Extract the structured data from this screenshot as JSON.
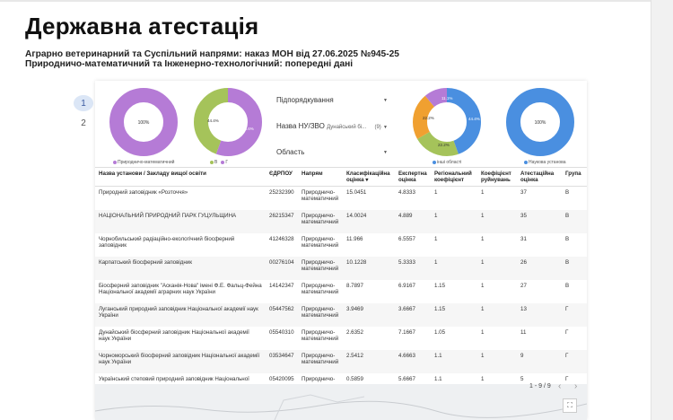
{
  "title": "Державна атестація",
  "subtitle1": "Аграрно ветеринарний та Суспільний напрями: наказ МОН від 27.06.2025 №945-25",
  "subtitle2": "Природничо-математичний та Інженерно-технологічний: попередні дані",
  "pages": [
    "1",
    "2"
  ],
  "charts": [
    {
      "labels": [
        "100%"
      ],
      "legend": [
        "Природничо-математичний"
      ],
      "colors": [
        "#b57bd6"
      ]
    },
    {
      "labels": [
        "44.4%",
        "55.6%"
      ],
      "legend": [
        "В",
        "Г"
      ],
      "colors": [
        "#a5c35a",
        "#b57bd6"
      ]
    },
    {
      "labels": [
        "11.1%",
        "22.2%",
        "22.2%",
        "44.4%"
      ],
      "legend": [
        "інші області"
      ],
      "colors": [
        "#b57bd6",
        "#f0a030",
        "#a5c35a",
        "#4a8fe0"
      ]
    },
    {
      "labels": [
        "100%"
      ],
      "legend": [
        "Наукова установа"
      ],
      "colors": [
        "#4a8fe0"
      ]
    }
  ],
  "filters": {
    "f1": {
      "label": "Підпорядкування"
    },
    "f2": {
      "label": "Назва НУ/ЗВО",
      "value": "Дунайський бі...",
      "count": "(9)"
    },
    "f3": {
      "label": "Область"
    }
  },
  "table": {
    "headers": [
      "Назва установи / Закладу вищої освіти",
      "ЄДРПОУ",
      "Напрям",
      "Класифікаційна оцінка",
      "Експертна оцінка",
      "Регіональний коефіцієнт",
      "Коефіцієнт руйнувань",
      "Атестаційна оцінка",
      "Група"
    ],
    "rows": [
      [
        "Природний заповідник «Розточчя»",
        "25232390",
        "Природничо-математичний",
        "15.0451",
        "4.8333",
        "1",
        "1",
        "37",
        "В"
      ],
      [
        "НАЦІОНАЛЬНИЙ ПРИРОДНИЙ ПАРК ГУЦУЛЬЩИНА",
        "26215347",
        "Природничо-математичний",
        "14.0024",
        "4.889",
        "1",
        "1",
        "35",
        "В"
      ],
      [
        "Чорнобильський радіаційно-екологічний біосферний заповідник",
        "41246328",
        "Природничо-математичний",
        "11.966",
        "6.5557",
        "1",
        "1",
        "31",
        "В"
      ],
      [
        "Карпатський біосферний заповідник",
        "00276104",
        "Природничо-математичний",
        "10.1228",
        "5.3333",
        "1",
        "1",
        "26",
        "В"
      ],
      [
        "Біосферний заповідник \"Асканія-Нова\" імені Ф.Е. Фальц-Фейна Національної академії аграрних наук України",
        "14142347",
        "Природничо-математичний",
        "8.7897",
        "6.9167",
        "1.15",
        "1",
        "27",
        "В"
      ],
      [
        "Луганський природний заповідник Національної академії наук України",
        "05447562",
        "Природничо-математичний",
        "3.9469",
        "3.6667",
        "1.15",
        "1",
        "13",
        "Г"
      ],
      [
        "Дунайський біосферний заповідник Національної академії наук України",
        "05540310",
        "Природничо-математичний",
        "2.6352",
        "7.1667",
        "1.05",
        "1",
        "11",
        "Г"
      ],
      [
        "Чорноморський біосферний заповідник Національної академії наук України",
        "03534647",
        "Природничо-математичний",
        "2.5412",
        "4.6663",
        "1.1",
        "1",
        "9",
        "Г"
      ],
      [
        "Український степовий природний заповідник Національної",
        "05420095",
        "Природничо-",
        "0.5859",
        "5.6667",
        "1.1",
        "1",
        "5",
        "Г"
      ]
    ]
  },
  "pagination": "1 - 9 / 9"
}
